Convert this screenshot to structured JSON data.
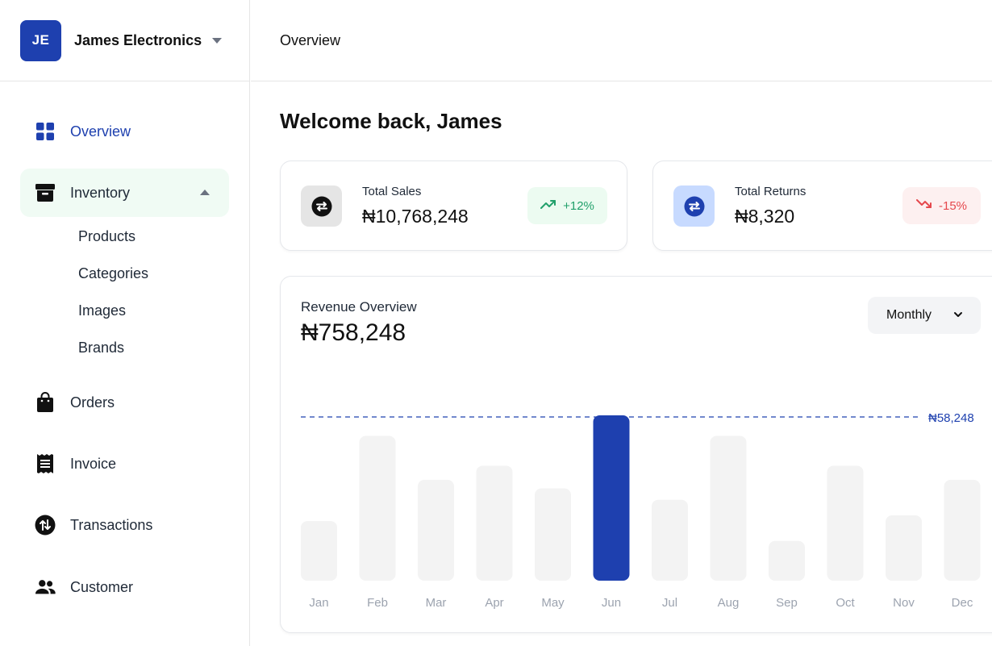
{
  "brand": {
    "initials": "JE",
    "name": "James Electronics"
  },
  "nav": {
    "overview": "Overview",
    "inventory": "Inventory",
    "inventory_sub": [
      "Products",
      "Categories",
      "Images",
      "Brands"
    ],
    "orders": "Orders",
    "invoice": "Invoice",
    "transactions": "Transactions",
    "customer": "Customer"
  },
  "header": {
    "title": "Overview"
  },
  "welcome": "Welcome back, James",
  "stats": [
    {
      "label": "Total Sales",
      "value": "₦10,768,248",
      "change": "+12%",
      "trend": "up"
    },
    {
      "label": "Total Returns",
      "value": "₦8,320",
      "change": "-15%",
      "trend": "down"
    }
  ],
  "revenue": {
    "title": "Revenue Overview",
    "total": "₦758,248",
    "period": "Monthly"
  },
  "colors": {
    "accent": "#1e40af",
    "positive": "#22a06b",
    "negative": "#e5484d",
    "bar": "#f3f3f3"
  },
  "chart_data": {
    "type": "bar",
    "categories": [
      "Jan",
      "Feb",
      "Mar",
      "Apr",
      "May",
      "Jun",
      "Jul",
      "Aug",
      "Sep",
      "Oct",
      "Nov",
      "Dec"
    ],
    "values": [
      21000,
      51000,
      35500,
      40500,
      32500,
      58248,
      28500,
      51000,
      14000,
      40500,
      23000,
      35500
    ],
    "highlight": "Jun",
    "reference_line": {
      "value": 58248,
      "label": "₦58,248"
    },
    "ylim": [
      0,
      58248
    ],
    "grid": false
  }
}
